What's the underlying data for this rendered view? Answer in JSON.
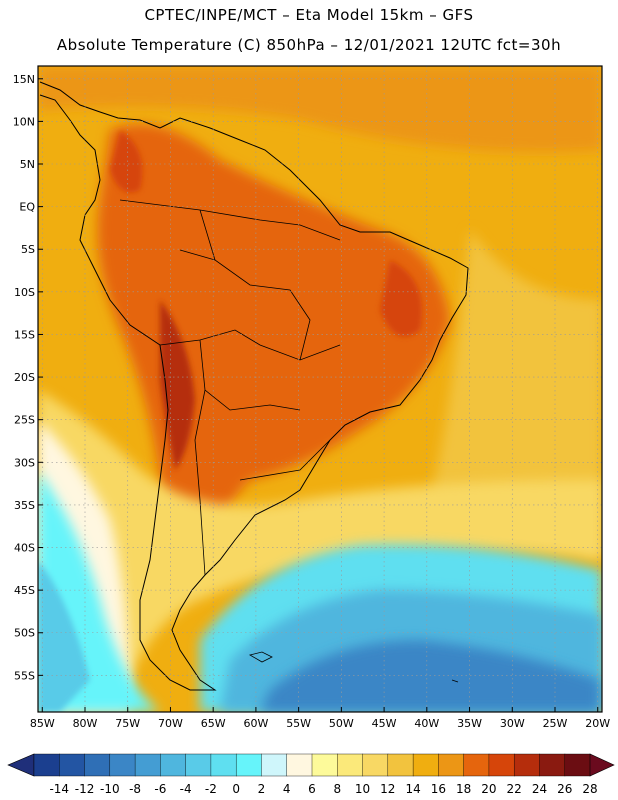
{
  "header": {
    "line1": "CPTEC/INPE/MCT  –   Eta Model 15km  –  GFS",
    "line2": "Absolute Temperature (C) 850hPa  –  12/01/2021 12UTC fct=30h"
  },
  "map": {
    "lat_labels": [
      "15N",
      "10N",
      "5N",
      "EQ",
      "5S",
      "10S",
      "15S",
      "20S",
      "25S",
      "30S",
      "35S",
      "40S",
      "45S",
      "50S",
      "55S"
    ],
    "lon_labels": [
      "85W",
      "80W",
      "75W",
      "70W",
      "65W",
      "60W",
      "55W",
      "50W",
      "45W",
      "40W",
      "35W",
      "30W",
      "25W",
      "20W"
    ]
  },
  "colorbar": {
    "labels": [
      "-14",
      "-12",
      "-10",
      "-8",
      "-6",
      "-4",
      "-2",
      "0",
      "2",
      "4",
      "6",
      "8",
      "10",
      "12",
      "14",
      "16",
      "18",
      "20",
      "22",
      "24",
      "26",
      "28"
    ],
    "colors": [
      "#1b3f8f",
      "#2355a3",
      "#2f6fb6",
      "#3b86c6",
      "#449dd3",
      "#4fb6de",
      "#59cbe8",
      "#5fdff0",
      "#66f4fa",
      "#cff6fb",
      "#fff7e0",
      "#fdfa9a",
      "#fbe97a",
      "#f8d864",
      "#f2c33e",
      "#f0ae10",
      "#ec9615",
      "#e5650d",
      "#d6450a",
      "#b52d0c",
      "#8a1a10",
      "#6b0d12"
    ],
    "low_end_color": "#1f2f7a",
    "high_end_color": "#6a0a1e"
  }
}
